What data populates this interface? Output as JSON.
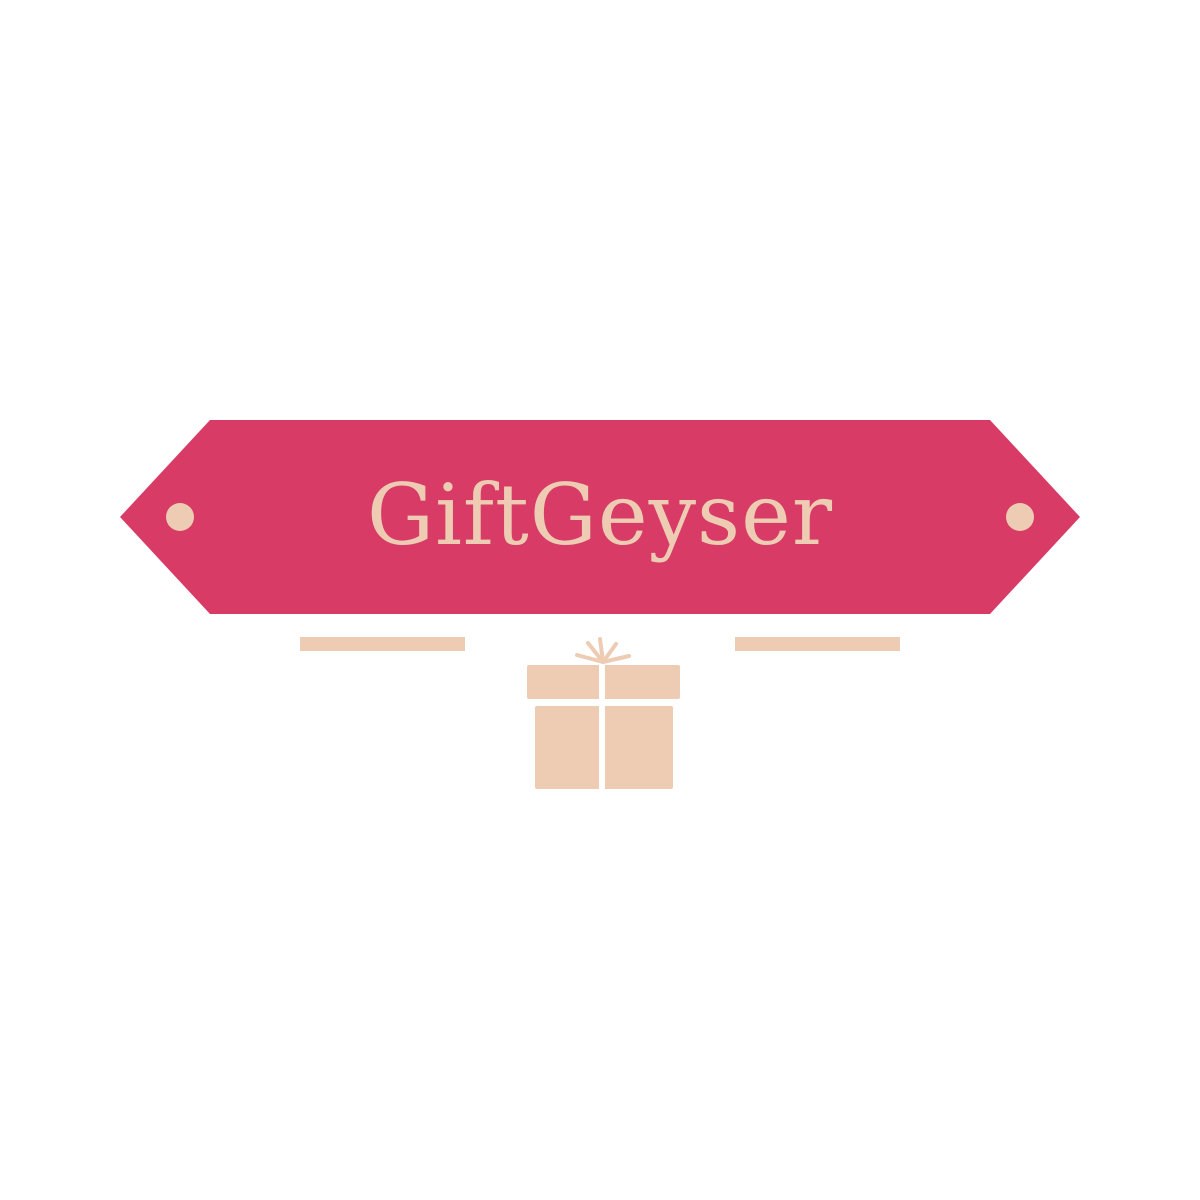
{
  "logo": {
    "brand_name": "GiftGeyser",
    "icon": "gift-box-icon"
  },
  "colors": {
    "background": "#ffffff",
    "banner": "#d83c66",
    "accent": "#eecbb3"
  }
}
